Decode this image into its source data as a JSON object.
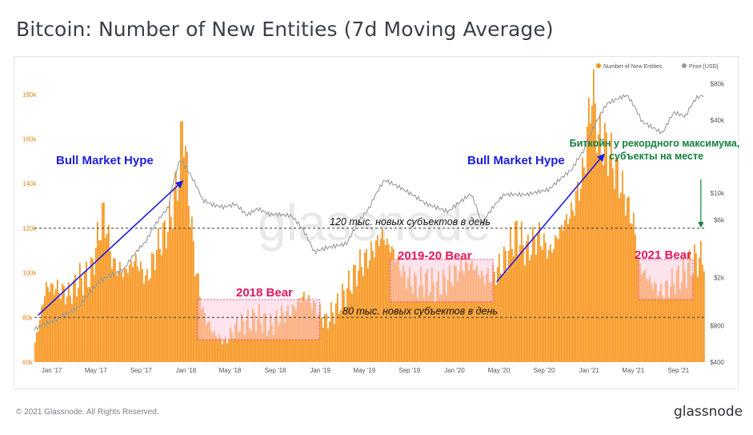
{
  "title": "Bitcoin: Number of New Entities (7d Moving Average)",
  "footer": {
    "copyright": "© 2021 Glassnode. All Rights Reserved.",
    "logo": "glassnode"
  },
  "watermark": "glassnode",
  "colors": {
    "entities": "#f7931a",
    "price": "#9a9a9a",
    "bear_fill": "#ffc8dc",
    "bear_border": "#e8447a",
    "bear_text": "#e8155e",
    "hype_text": "#1d1de0",
    "ru_text": "#14803c"
  },
  "chart_data": {
    "type": "area",
    "title": "Bitcoin: Number of New Entities (7d Moving Average)",
    "legend": {
      "position": "top-right",
      "items": [
        "Number of New Entities",
        "Price [USD]"
      ]
    },
    "x_ticks": [
      "Jan '17",
      "May '17",
      "Sep '17",
      "Jan '18",
      "May '18",
      "Sep '18",
      "Jan '19",
      "May '19",
      "Sep '19",
      "Jan '20",
      "May '20",
      "Sep '20",
      "Jan '21",
      "May '21",
      "Sep '21"
    ],
    "y_left": {
      "ticks": [
        "60k",
        "80k",
        "100k",
        "120k",
        "140k",
        "160k",
        "180k"
      ],
      "range": [
        60000,
        190000
      ]
    },
    "y_right": {
      "scale": "log",
      "ticks": [
        "$400",
        "$800",
        "$2k",
        "$6k",
        "$10k",
        "$40k",
        "$80k"
      ],
      "range": [
        400,
        100000
      ]
    },
    "x_range": [
      "2016-11-15",
      "2021-11-10"
    ],
    "series": [
      {
        "name": "Number of New Entities",
        "points": [
          [
            "2016-11-15",
            68000
          ],
          [
            "2016-12-15",
            94000
          ],
          [
            "2017-01-15",
            93000
          ],
          [
            "2017-02-15",
            90000
          ],
          [
            "2017-03-15",
            97000
          ],
          [
            "2017-04-15",
            99000
          ],
          [
            "2017-05-20",
            128000
          ],
          [
            "2017-06-15",
            104000
          ],
          [
            "2017-07-15",
            100000
          ],
          [
            "2017-08-15",
            106000
          ],
          [
            "2017-09-15",
            97000
          ],
          [
            "2017-10-15",
            112000
          ],
          [
            "2017-11-15",
            122000
          ],
          [
            "2017-12-10",
            143000
          ],
          [
            "2017-12-22",
            170000
          ],
          [
            "2018-01-10",
            128000
          ],
          [
            "2018-01-25",
            103000
          ],
          [
            "2018-02-15",
            82000
          ],
          [
            "2018-03-15",
            73000
          ],
          [
            "2018-04-15",
            69000
          ],
          [
            "2018-05-15",
            76000
          ],
          [
            "2018-06-15",
            78000
          ],
          [
            "2018-07-15",
            80000
          ],
          [
            "2018-08-15",
            76000
          ],
          [
            "2018-09-15",
            81000
          ],
          [
            "2018-10-15",
            83000
          ],
          [
            "2018-11-15",
            90000
          ],
          [
            "2018-12-15",
            85000
          ],
          [
            "2019-01-15",
            78000
          ],
          [
            "2019-02-15",
            85000
          ],
          [
            "2019-03-15",
            93000
          ],
          [
            "2019-04-15",
            103000
          ],
          [
            "2019-05-15",
            108000
          ],
          [
            "2019-06-15",
            117000
          ],
          [
            "2019-07-15",
            110000
          ],
          [
            "2019-08-15",
            99000
          ],
          [
            "2019-09-15",
            95000
          ],
          [
            "2019-10-15",
            96000
          ],
          [
            "2019-11-15",
            94000
          ],
          [
            "2019-12-15",
            97000
          ],
          [
            "2020-01-15",
            102000
          ],
          [
            "2020-02-15",
            104000
          ],
          [
            "2020-03-15",
            98000
          ],
          [
            "2020-04-15",
            99000
          ],
          [
            "2020-05-15",
            106000
          ],
          [
            "2020-06-15",
            118000
          ],
          [
            "2020-07-15",
            110000
          ],
          [
            "2020-08-15",
            117000
          ],
          [
            "2020-09-15",
            109000
          ],
          [
            "2020-10-15",
            120000
          ],
          [
            "2020-11-15",
            128000
          ],
          [
            "2020-12-15",
            145000
          ],
          [
            "2021-01-08",
            184000
          ],
          [
            "2021-01-25",
            160000
          ],
          [
            "2021-02-15",
            157000
          ],
          [
            "2021-03-15",
            145000
          ],
          [
            "2021-04-15",
            130000
          ],
          [
            "2021-05-01",
            122000
          ],
          [
            "2021-05-15",
            103000
          ],
          [
            "2021-06-15",
            96000
          ],
          [
            "2021-07-15",
            91000
          ],
          [
            "2021-08-15",
            96000
          ],
          [
            "2021-09-15",
            100000
          ],
          [
            "2021-10-15",
            106000
          ],
          [
            "2021-11-10",
            107000
          ]
        ]
      },
      {
        "name": "Price [USD]",
        "points": [
          [
            "2016-11-15",
            730
          ],
          [
            "2017-01-15",
            900
          ],
          [
            "2017-03-15",
            1150
          ],
          [
            "2017-05-20",
            2000
          ],
          [
            "2017-07-15",
            2300
          ],
          [
            "2017-09-15",
            3900
          ],
          [
            "2017-11-15",
            7500
          ],
          [
            "2017-12-17",
            19000
          ],
          [
            "2018-01-15",
            14000
          ],
          [
            "2018-02-15",
            9000
          ],
          [
            "2018-03-15",
            8200
          ],
          [
            "2018-04-15",
            7800
          ],
          [
            "2018-05-15",
            8200
          ],
          [
            "2018-06-15",
            6500
          ],
          [
            "2018-07-15",
            7300
          ],
          [
            "2018-08-15",
            6500
          ],
          [
            "2018-09-15",
            6500
          ],
          [
            "2018-10-15",
            6400
          ],
          [
            "2018-11-15",
            5000
          ],
          [
            "2018-12-15",
            3300
          ],
          [
            "2019-01-15",
            3600
          ],
          [
            "2019-03-15",
            3900
          ],
          [
            "2019-05-15",
            7500
          ],
          [
            "2019-06-25",
            12500
          ],
          [
            "2019-08-15",
            10500
          ],
          [
            "2019-10-15",
            8200
          ],
          [
            "2019-12-15",
            7200
          ],
          [
            "2020-02-15",
            10000
          ],
          [
            "2020-03-15",
            5500
          ],
          [
            "2020-05-15",
            9500
          ],
          [
            "2020-07-15",
            9500
          ],
          [
            "2020-09-15",
            10800
          ],
          [
            "2020-11-15",
            16000
          ],
          [
            "2020-12-20",
            23500
          ],
          [
            "2021-01-15",
            36000
          ],
          [
            "2021-02-20",
            55000
          ],
          [
            "2021-04-14",
            63000
          ],
          [
            "2021-05-25",
            38000
          ],
          [
            "2021-07-20",
            31000
          ],
          [
            "2021-08-20",
            47000
          ],
          [
            "2021-09-20",
            44000
          ],
          [
            "2021-10-20",
            63000
          ],
          [
            "2021-11-10",
            66000
          ]
        ]
      }
    ],
    "reference_lines": [
      {
        "y": 120000,
        "label": "120 тыс. новых субъектов в день"
      },
      {
        "y": 80000,
        "label": "80 тыс. новых субъектов в день"
      }
    ],
    "annotations": {
      "hype_1": "Bull Market Hype",
      "hype_2": "Bull Market Hype",
      "bear_2018": "2018 Bear",
      "bear_2019": "2019-20 Bear",
      "bear_2021": "2021 Bear",
      "ath_line1": "Биткойн у рекордного максимума,",
      "ath_line2": "субъекты на месте"
    },
    "bear_zones": [
      {
        "label": "2018 Bear",
        "x": [
          "2018-02-01",
          "2018-12-31"
        ],
        "y": [
          70000,
          88000
        ]
      },
      {
        "label": "2019-20 Bear",
        "x": [
          "2019-07-10",
          "2020-04-15"
        ],
        "y": [
          87000,
          106000
        ]
      },
      {
        "label": "2021 Bear",
        "x": [
          "2021-05-15",
          "2021-10-10"
        ],
        "y": [
          88000,
          106000
        ]
      }
    ],
    "trend_arrows": [
      {
        "from": [
          "2016-11-25",
          81000
        ],
        "to": [
          "2017-12-22",
          141000
        ]
      },
      {
        "from": [
          "2020-04-25",
          96000
        ],
        "to": [
          "2021-02-10",
          153000
        ]
      }
    ],
    "callout_arrow": {
      "at": "2021-11-01",
      "from_y": 142000,
      "to_y": 120000
    }
  }
}
